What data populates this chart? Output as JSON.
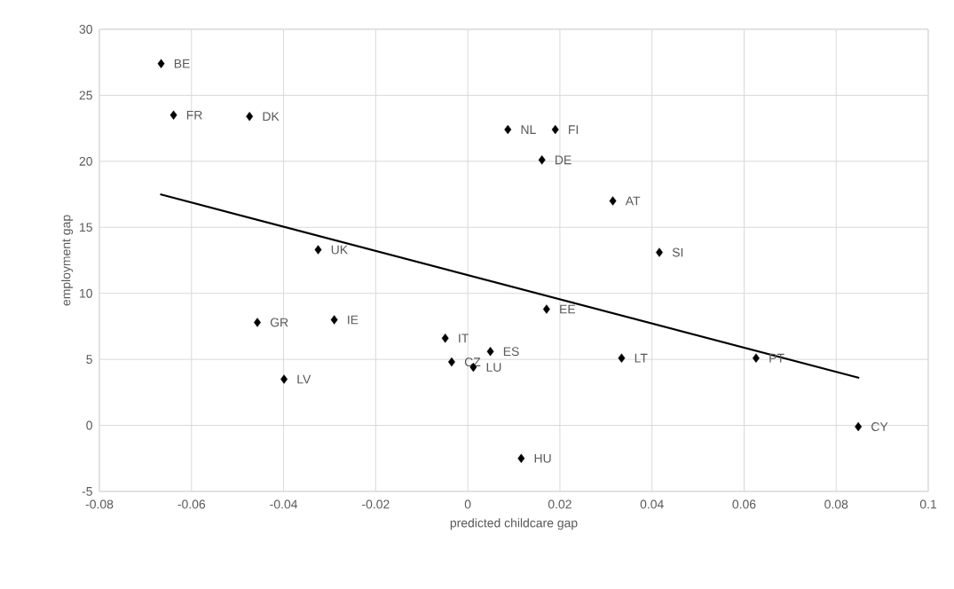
{
  "chart_data": {
    "type": "scatter",
    "xlabel": "predicted childcare gap",
    "ylabel": "employment gap",
    "xlim": [
      -0.08,
      0.1
    ],
    "xticks": [
      -0.08,
      -0.06,
      -0.04,
      -0.02,
      0,
      0.02,
      0.04,
      0.06,
      0.08,
      0.1
    ],
    "ylim": [
      -5,
      30
    ],
    "yticks": [
      -5,
      0,
      5,
      10,
      15,
      20,
      25,
      30
    ],
    "grid": true,
    "marker": "diamond",
    "series": [
      {
        "color": "#000000",
        "x": [
          -0.0666,
          -0.0639,
          -0.0474,
          -0.0325,
          0.0087,
          0.019,
          0.0161,
          0.0315,
          0.0416,
          -0.0457,
          -0.029,
          -0.0399,
          -0.0049,
          -0.0035,
          0.0012,
          0.0049,
          0.0171,
          0.0334,
          0.0626,
          0.0848,
          0.0116
        ],
        "values": [
          27.4,
          23.5,
          23.4,
          13.3,
          22.4,
          22.4,
          20.1,
          17.0,
          13.1,
          7.8,
          8.0,
          3.5,
          6.6,
          4.8,
          4.4,
          5.6,
          8.8,
          5.1,
          5.1,
          -0.1,
          -2.5
        ]
      },
      {
        "type": "line",
        "color": "#000000",
        "marker": "none",
        "x": [
          -0.0668,
          0.085
        ],
        "values": [
          17.5,
          3.6
        ]
      }
    ],
    "annotations": [
      {
        "text": "BE",
        "x": -0.0666,
        "y": 27.4
      },
      {
        "text": "FR",
        "x": -0.0639,
        "y": 23.5
      },
      {
        "text": "DK",
        "x": -0.0474,
        "y": 23.4
      },
      {
        "text": "UK",
        "x": -0.0325,
        "y": 13.3
      },
      {
        "text": "NL",
        "x": 0.0087,
        "y": 22.4
      },
      {
        "text": "FI",
        "x": 0.019,
        "y": 22.4
      },
      {
        "text": "DE",
        "x": 0.0161,
        "y": 20.1
      },
      {
        "text": "AT",
        "x": 0.0315,
        "y": 17.0
      },
      {
        "text": "SI",
        "x": 0.0416,
        "y": 13.1
      },
      {
        "text": "GR",
        "x": -0.0457,
        "y": 7.8
      },
      {
        "text": "IE",
        "x": -0.029,
        "y": 8.0
      },
      {
        "text": "LV",
        "x": -0.0399,
        "y": 3.5
      },
      {
        "text": "IT",
        "x": -0.0049,
        "y": 6.6
      },
      {
        "text": "CZ",
        "x": -0.0035,
        "y": 4.8
      },
      {
        "text": "LU",
        "x": 0.0012,
        "y": 4.4
      },
      {
        "text": "ES",
        "x": 0.0049,
        "y": 5.6
      },
      {
        "text": "EE",
        "x": 0.0171,
        "y": 8.8
      },
      {
        "text": "LT",
        "x": 0.0334,
        "y": 5.1
      },
      {
        "text": "PT",
        "x": 0.0626,
        "y": 5.1
      },
      {
        "text": "CY",
        "x": 0.0848,
        "y": -0.1
      },
      {
        "text": "HU",
        "x": 0.0116,
        "y": -2.5
      }
    ]
  }
}
